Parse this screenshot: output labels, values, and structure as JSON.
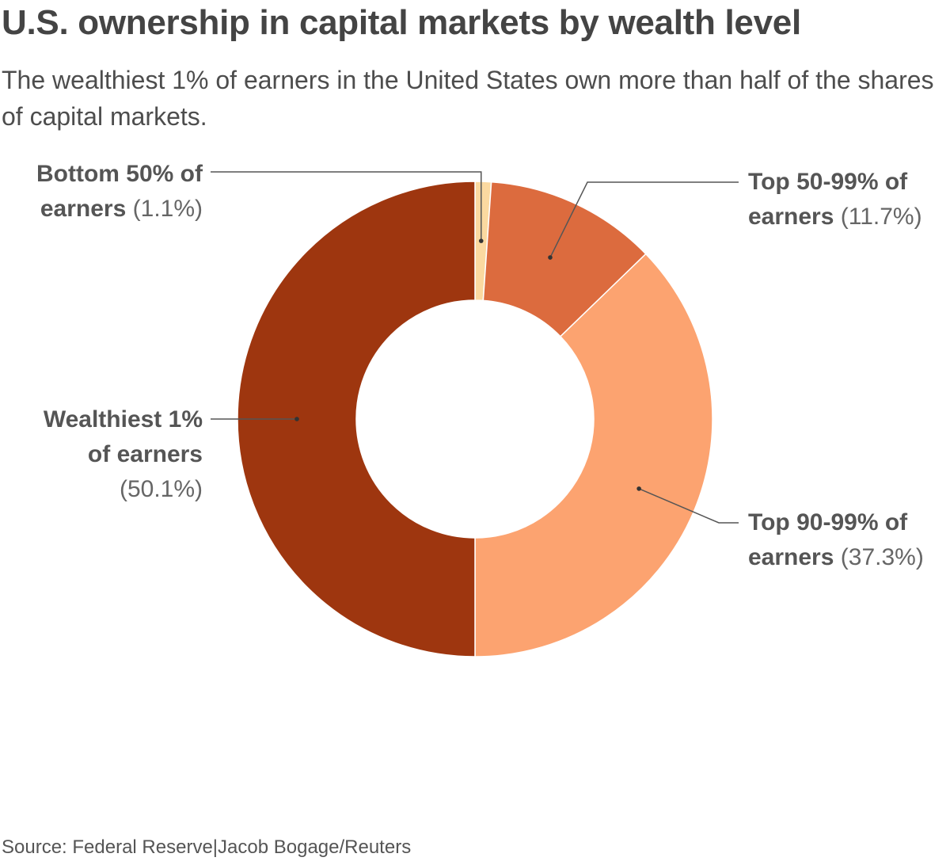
{
  "title": "U.S. ownership in capital markets by wealth level",
  "subtitle": "The wealthiest 1% of earners in the United States own more than half of the shares of capital markets.",
  "source": {
    "text": "Source: Federal Reserve",
    "separator": "|",
    "credit": "Jacob Bogage/Reuters"
  },
  "chart_data": {
    "type": "pie",
    "variant": "donut",
    "unit": "%",
    "slices": [
      {
        "name": "Bottom 50% of earners",
        "value": 1.1,
        "label_line1": "Bottom 50% of",
        "label_line2": "earners",
        "pct_text": "(1.1%)",
        "color": "#fbd9a0"
      },
      {
        "name": "Top 50-99% of earners",
        "value": 11.7,
        "label_line1": "Top 50-99% of",
        "label_line2": "earners",
        "pct_text": "(11.7%)",
        "color": "#dc6b3e"
      },
      {
        "name": "Top 90-99% of earners",
        "value": 37.3,
        "label_line1": "Top 90-99% of",
        "label_line2": "earners",
        "pct_text": "(37.3%)",
        "color": "#fca370"
      },
      {
        "name": "Wealthiest 1% of earners",
        "value": 50.1,
        "label_line1": "Wealthiest 1%",
        "label_line2": "of earners",
        "pct_text": "(50.1%)",
        "color": "#9e360f"
      }
    ],
    "label_placement": "outside with leader lines",
    "legend": "none"
  }
}
